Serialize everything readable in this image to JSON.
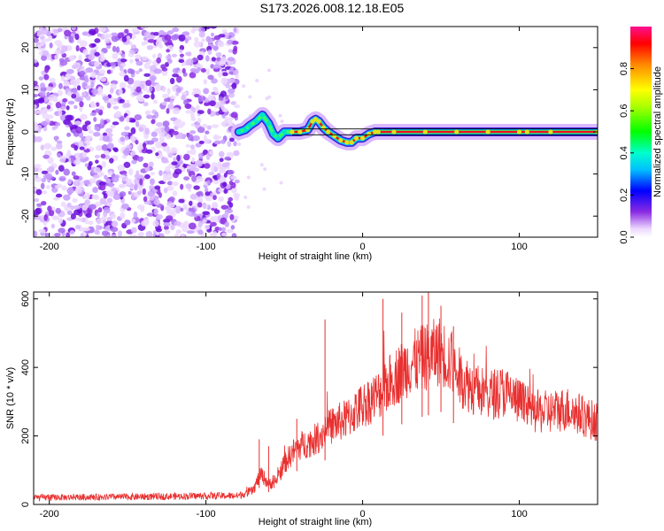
{
  "title": "S173.2026.008.12.18.E05",
  "chart_data": [
    {
      "type": "heatmap",
      "name": "frequency-spectrogram",
      "xlabel": "Height of straight line (km)",
      "ylabel": "Frequency (Hz)",
      "xlim": [
        -210,
        150
      ],
      "ylim": [
        -25,
        25
      ],
      "x_ticks": [
        -200,
        -100,
        0,
        100
      ],
      "y_ticks": [
        -20,
        -10,
        0,
        10,
        20
      ],
      "noise_region_x": [
        -210,
        -80
      ],
      "tracked_frequency": {
        "x": [
          -79,
          -75,
          -72,
          -68,
          -64,
          -60,
          -57,
          -54,
          -50,
          -45,
          -40,
          -35,
          -32,
          -30,
          -28,
          -25,
          -22,
          -18,
          -14,
          -10,
          -7,
          -4,
          0,
          4,
          8,
          10,
          20,
          40,
          60,
          80,
          100,
          105,
          120,
          150
        ],
        "y": [
          0,
          0.5,
          1.5,
          2.5,
          4.0,
          2.0,
          -0.5,
          -1.5,
          0.0,
          0.0,
          0.0,
          0.5,
          2.5,
          3.0,
          2.5,
          1.0,
          0.0,
          -1.0,
          -2.0,
          -2.5,
          -2.5,
          -1.5,
          -1.5,
          -0.5,
          0.0,
          0.0,
          0.0,
          0.0,
          0.0,
          0.0,
          0.0,
          0.0,
          0.0,
          0.0
        ]
      },
      "colorbar": {
        "label": "Normalized spectral amplitude",
        "range": [
          0,
          1
        ],
        "ticks": [
          0.0,
          0.2,
          0.4,
          0.6,
          0.8
        ]
      }
    },
    {
      "type": "line",
      "name": "snr-trace",
      "xlabel": "Height of straight line (km)",
      "ylabel": "SNR (10 * v/v)",
      "xlim": [
        -210,
        150
      ],
      "ylim": [
        0,
        620
      ],
      "x_ticks": [
        -200,
        -100,
        0,
        100
      ],
      "y_ticks": [
        0,
        200,
        400,
        600
      ],
      "color": "#e8302f",
      "envelope": {
        "x": [
          -210,
          -150,
          -100,
          -80,
          -70,
          -65,
          -60,
          -55,
          -50,
          -45,
          -40,
          -30,
          -20,
          -10,
          0,
          10,
          20,
          30,
          40,
          50,
          55,
          60,
          70,
          80,
          90,
          100,
          110,
          120,
          130,
          140,
          150
        ],
        "y": [
          20,
          22,
          25,
          25,
          40,
          90,
          60,
          70,
          120,
          150,
          170,
          190,
          230,
          250,
          290,
          320,
          370,
          410,
          430,
          450,
          420,
          380,
          340,
          320,
          330,
          300,
          270,
          270,
          280,
          260,
          240
        ]
      },
      "spikes": [
        {
          "x": -66,
          "y": 190
        },
        {
          "x": -60,
          "y": 170
        },
        {
          "x": -42,
          "y": 250
        },
        {
          "x": -24,
          "y": 540
        },
        {
          "x": 13,
          "y": 600
        },
        {
          "x": 25,
          "y": 560
        },
        {
          "x": 38,
          "y": 610
        },
        {
          "x": 42,
          "y": 620
        },
        {
          "x": 50,
          "y": 580
        },
        {
          "x": 58,
          "y": 520
        }
      ]
    }
  ]
}
